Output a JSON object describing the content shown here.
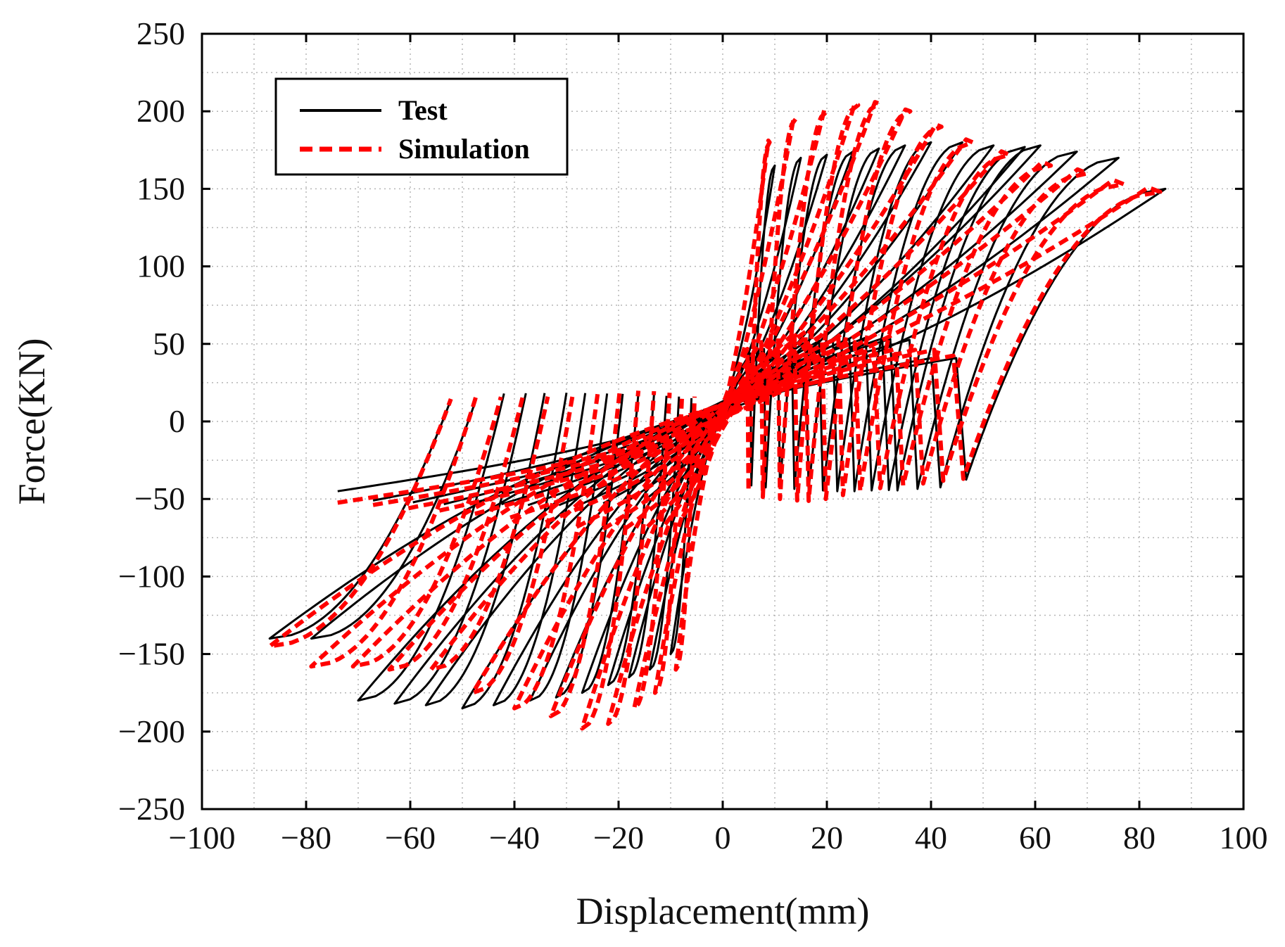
{
  "chart_data": {
    "type": "line",
    "title": "",
    "xlabel": "Displacement(mm)",
    "ylabel": "Force(KN)",
    "xlim": [
      -100,
      100
    ],
    "ylim": [
      -250,
      250
    ],
    "x_ticks": [
      -100,
      -80,
      -60,
      -40,
      -20,
      0,
      20,
      40,
      60,
      80,
      100
    ],
    "y_ticks": [
      -250,
      -200,
      -150,
      -100,
      -50,
      0,
      50,
      100,
      150,
      200,
      250
    ],
    "x_tick_labels": [
      "−100",
      "−80",
      "−60",
      "−40",
      "−20",
      "0",
      "20",
      "40",
      "60",
      "80",
      "100"
    ],
    "y_tick_labels": [
      "−250",
      "−200",
      "−150",
      "−100",
      "−50",
      "0",
      "50",
      "100",
      "150",
      "200",
      "250"
    ],
    "grid": true,
    "legend_position": "top-left",
    "legend": [
      "Test",
      "Simulation"
    ],
    "series": [
      {
        "name": "Test",
        "color": "#000000",
        "style": "solid",
        "loops": [
          {
            "d_pos": 10,
            "f_pos": 165,
            "d_neg": -10,
            "f_neg": -150
          },
          {
            "d_pos": 15,
            "f_pos": 170,
            "d_neg": -14,
            "f_neg": -160
          },
          {
            "d_pos": 20,
            "f_pos": 172,
            "d_neg": -18,
            "f_neg": -165
          },
          {
            "d_pos": 25,
            "f_pos": 174,
            "d_neg": -22,
            "f_neg": -170
          },
          {
            "d_pos": 30,
            "f_pos": 176,
            "d_neg": -27,
            "f_neg": -175
          },
          {
            "d_pos": 35,
            "f_pos": 178,
            "d_neg": -32,
            "f_neg": -178
          },
          {
            "d_pos": 40,
            "f_pos": 180,
            "d_neg": -37,
            "f_neg": -180
          },
          {
            "d_pos": 46,
            "f_pos": 180,
            "d_neg": -44,
            "f_neg": -183
          },
          {
            "d_pos": 52,
            "f_pos": 178,
            "d_neg": -50,
            "f_neg": -185
          },
          {
            "d_pos": 58,
            "f_pos": 177,
            "d_neg": -57,
            "f_neg": -183
          },
          {
            "d_pos": 61,
            "f_pos": 178,
            "d_neg": -63,
            "f_neg": -182
          },
          {
            "d_pos": 68,
            "f_pos": 174,
            "d_neg": -70,
            "f_neg": -180
          },
          {
            "d_pos": 76,
            "f_pos": 170,
            "d_neg": -79,
            "f_neg": -140
          },
          {
            "d_pos": 85,
            "f_pos": 150,
            "d_neg": -87,
            "f_neg": -140
          }
        ]
      },
      {
        "name": "Simulation",
        "color": "#ff0000",
        "style": "dashed",
        "loops": [
          {
            "d_pos": 9,
            "f_pos": 180,
            "d_neg": -9,
            "f_neg": -160
          },
          {
            "d_pos": 14,
            "f_pos": 195,
            "d_neg": -13,
            "f_neg": -175
          },
          {
            "d_pos": 20,
            "f_pos": 200,
            "d_neg": -17,
            "f_neg": -185
          },
          {
            "d_pos": 26,
            "f_pos": 204,
            "d_neg": -22,
            "f_neg": -195
          },
          {
            "d_pos": 30,
            "f_pos": 205,
            "d_neg": -27,
            "f_neg": -198
          },
          {
            "d_pos": 36,
            "f_pos": 200,
            "d_neg": -33,
            "f_neg": -190
          },
          {
            "d_pos": 42,
            "f_pos": 190,
            "d_neg": -40,
            "f_neg": -185
          },
          {
            "d_pos": 48,
            "f_pos": 180,
            "d_neg": -48,
            "f_neg": -175
          },
          {
            "d_pos": 55,
            "f_pos": 172,
            "d_neg": -56,
            "f_neg": -160
          },
          {
            "d_pos": 63,
            "f_pos": 165,
            "d_neg": -64,
            "f_neg": -160
          },
          {
            "d_pos": 70,
            "f_pos": 160,
            "d_neg": -71,
            "f_neg": -158
          },
          {
            "d_pos": 77,
            "f_pos": 153,
            "d_neg": -79,
            "f_neg": -158
          },
          {
            "d_pos": 84,
            "f_pos": 148,
            "d_neg": -87,
            "f_neg": -145
          }
        ]
      }
    ]
  }
}
